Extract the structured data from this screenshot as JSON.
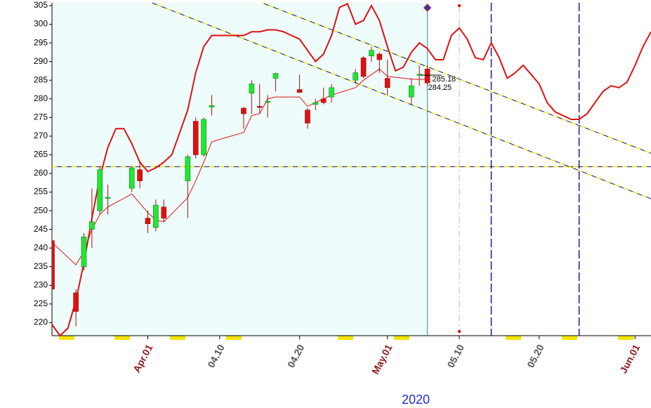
{
  "chart_data": {
    "type": "candlestick",
    "xlabel": "2020",
    "xlim": [
      "2020-03-20",
      "2020-06-03"
    ],
    "ylim": [
      216.5,
      305.75
    ],
    "yticks": [
      220,
      225,
      230,
      235,
      240,
      245,
      250,
      255,
      260,
      265,
      270,
      275,
      280,
      285,
      290,
      295,
      300,
      305
    ],
    "xticks": [
      {
        "value": "2020-04-01",
        "label": "Apr.01",
        "color": "#8b1a1a"
      },
      {
        "value": "2020-04-10",
        "label": "04.10",
        "color": "#555555"
      },
      {
        "value": "2020-04-20",
        "label": "04.20",
        "color": "#555555"
      },
      {
        "value": "2020-05-01",
        "label": "May.01",
        "color": "#8b1a1a"
      },
      {
        "value": "2020-05-10",
        "label": "05.10",
        "color": "#555555"
      },
      {
        "value": "2020-05-20",
        "label": "05.20",
        "color": "#555555"
      },
      {
        "value": "2020-06-01",
        "label": "Jun.01",
        "color": "#8b1a1a"
      }
    ],
    "up_color": "#22e632",
    "down_color": "#e01010",
    "background_color": "#eefcfc",
    "x": [
      "2020-03-20",
      "2020-03-23",
      "2020-03-24",
      "2020-03-25",
      "2020-03-26",
      "2020-03-27",
      "2020-03-30",
      "2020-03-31",
      "2020-04-01",
      "2020-04-02",
      "2020-04-03",
      "2020-04-06",
      "2020-04-07",
      "2020-04-08",
      "2020-04-09",
      "2020-04-13",
      "2020-04-14",
      "2020-04-15",
      "2020-04-16",
      "2020-04-17",
      "2020-04-20",
      "2020-04-21",
      "2020-04-22",
      "2020-04-23",
      "2020-04-24",
      "2020-04-27",
      "2020-04-28",
      "2020-04-29",
      "2020-04-30",
      "2020-05-01",
      "2020-05-04",
      "2020-05-05",
      "2020-05-06"
    ],
    "open": [
      242,
      228,
      235,
      245,
      250,
      253.3,
      256,
      261,
      248,
      245.5,
      251,
      258,
      274,
      265,
      277.8,
      277.5,
      281.5,
      278,
      279,
      285.5,
      282.5,
      277,
      278.5,
      280,
      280.5,
      285,
      291,
      291.5,
      292,
      285.5,
      280.5,
      286.3,
      288
    ],
    "high": [
      244,
      229,
      244,
      256,
      262,
      257,
      262,
      263,
      250,
      253,
      253,
      265,
      275,
      275,
      281,
      277.8,
      285,
      284,
      281,
      287,
      286.5,
      277.5,
      280,
      283,
      284,
      288,
      291.5,
      294,
      292.5,
      290.5,
      285.5,
      289,
      289
    ],
    "low": [
      229,
      219,
      234,
      240,
      249,
      249,
      255,
      256,
      244,
      244.5,
      247,
      248,
      264,
      264.5,
      275.5,
      272,
      276,
      276,
      275,
      282,
      281.7,
      272,
      277,
      278.5,
      279,
      284,
      285.5,
      290,
      287,
      281,
      278.5,
      283.5,
      283.5
    ],
    "close": [
      229,
      223,
      243,
      247,
      261,
      253.6,
      261.5,
      258,
      246.5,
      251.5,
      248,
      264.5,
      265,
      274.5,
      278.2,
      276,
      284,
      277.7,
      279.3,
      286.8,
      281.7,
      273.5,
      279,
      279,
      283,
      287,
      286,
      293,
      290.5,
      283,
      283.5,
      286.6,
      284.25
    ],
    "lines": [
      {
        "color": "#e01010",
        "width": 1,
        "values": [
          241.5,
          235.5,
          239,
          245,
          249,
          251,
          254.5,
          252,
          249.5,
          247.5,
          247,
          253.5,
          258,
          263,
          268.5,
          271,
          275.5,
          276,
          280,
          280.5,
          280.5,
          278,
          279,
          280,
          281,
          283,
          285,
          286.5,
          288,
          286,
          285.3,
          285.2,
          285.2
        ]
      },
      {
        "color": "#e01010",
        "width": 2,
        "x": [
          "2020-03-20",
          "2020-03-21",
          "2020-03-22",
          "2020-03-23",
          "2020-03-24",
          "2020-03-25",
          "2020-03-26",
          "2020-03-27",
          "2020-03-28",
          "2020-03-29",
          "2020-03-30",
          "2020-03-31",
          "2020-04-01",
          "2020-04-02",
          "2020-04-03",
          "2020-04-04",
          "2020-04-05",
          "2020-04-06",
          "2020-04-07",
          "2020-04-08",
          "2020-04-09",
          "2020-04-10",
          "2020-04-11",
          "2020-04-12",
          "2020-04-13",
          "2020-04-14",
          "2020-04-15",
          "2020-04-16",
          "2020-04-17",
          "2020-04-18",
          "2020-04-19",
          "2020-04-20",
          "2020-04-21",
          "2020-04-22",
          "2020-04-23",
          "2020-04-24",
          "2020-04-25",
          "2020-04-26",
          "2020-04-27",
          "2020-04-28",
          "2020-04-29",
          "2020-04-30",
          "2020-05-01",
          "2020-05-02",
          "2020-05-03",
          "2020-05-04",
          "2020-05-05",
          "2020-05-06",
          "2020-05-07",
          "2020-05-08",
          "2020-05-09",
          "2020-05-10",
          "2020-05-11",
          "2020-05-12",
          "2020-05-13",
          "2020-05-14",
          "2020-05-15",
          "2020-05-16",
          "2020-05-17",
          "2020-05-18",
          "2020-05-19",
          "2020-05-20",
          "2020-05-21",
          "2020-05-22",
          "2020-05-23",
          "2020-05-24",
          "2020-05-25",
          "2020-05-26",
          "2020-05-27",
          "2020-05-28",
          "2020-05-29",
          "2020-05-30",
          "2020-05-31",
          "2020-06-01",
          "2020-06-02",
          "2020-06-03"
        ],
        "values": [
          219.5,
          216.5,
          218.5,
          226,
          236,
          248,
          259,
          267,
          272,
          272,
          268,
          263,
          260.5,
          261.5,
          263,
          265,
          271,
          277,
          287,
          294,
          297,
          297,
          297,
          297,
          297,
          298,
          298,
          298.5,
          298.5,
          298,
          297,
          296,
          293,
          290,
          292,
          297,
          304.5,
          305.5,
          300,
          301,
          305,
          301,
          294,
          287.5,
          288.5,
          292.5,
          295,
          293.5,
          290.5,
          290.5,
          297,
          299,
          296,
          291,
          290.5,
          295,
          291,
          285.5,
          287,
          289,
          286.5,
          284,
          279,
          276.5,
          275.5,
          274.5,
          274.5,
          276,
          279,
          282,
          283.5,
          283,
          284.5,
          289,
          294,
          298
        ]
      }
    ],
    "trendlines": [
      {
        "x": [
          "2020-04-01",
          "2020-06-03"
        ],
        "values": [
          306.2,
          253.2
        ]
      },
      {
        "x": [
          "2020-04-15",
          "2020-06-03"
        ],
        "values": [
          306.0,
          265.4
        ]
      }
    ],
    "hline": 261.8,
    "vlines": [
      {
        "x": "2020-05-14",
        "color": "#1a1a8c"
      },
      {
        "x": "2020-05-25",
        "color": "#1a1a8c"
      }
    ],
    "marker_line": {
      "x": "2020-05-10",
      "color": "#bbbbbb",
      "dot_color": "#e01010"
    },
    "cursor": {
      "x": "2020-05-06",
      "color": "#2a8fb8"
    },
    "annotations": [
      "285.18",
      "284.25"
    ]
  }
}
